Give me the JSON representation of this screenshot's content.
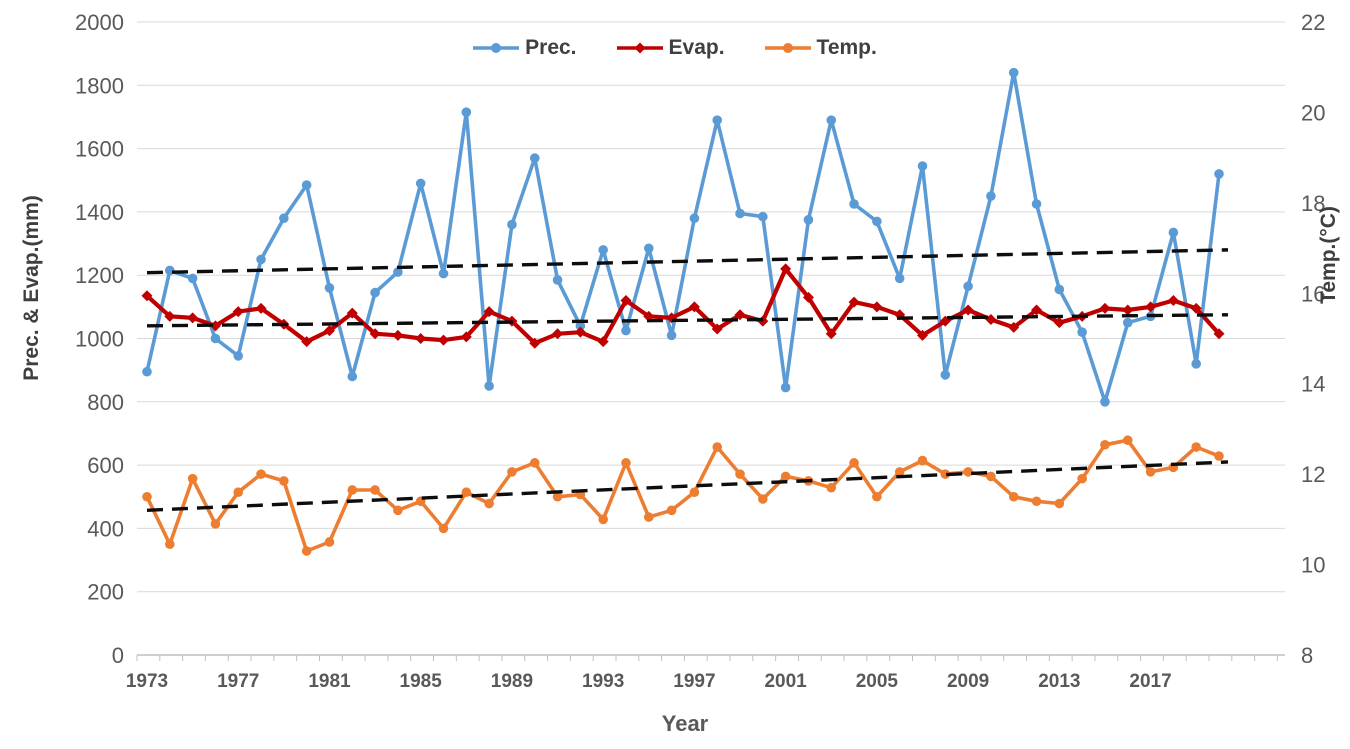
{
  "chart_data": {
    "type": "line",
    "title": "",
    "xlabel": "Year",
    "x_years": [
      1973,
      1974,
      1975,
      1976,
      1977,
      1978,
      1979,
      1980,
      1981,
      1982,
      1983,
      1984,
      1985,
      1986,
      1987,
      1988,
      1989,
      1990,
      1991,
      1992,
      1993,
      1994,
      1995,
      1996,
      1997,
      1998,
      1999,
      2000,
      2001,
      2002,
      2003,
      2004,
      2005,
      2006,
      2007,
      2008,
      2009,
      2010,
      2011,
      2012,
      2013,
      2014,
      2015,
      2016,
      2017,
      2018,
      2019,
      2020
    ],
    "x_tick_labels": [
      "1973",
      "1977",
      "1981",
      "1985",
      "1989",
      "1993",
      "1997",
      "2001",
      "2005",
      "2009",
      "2013",
      "2017"
    ],
    "left_axis": {
      "label": "Prec. & Evap.(mm)",
      "min": 0,
      "max": 2000,
      "step": 200,
      "ticks": [
        0,
        200,
        400,
        600,
        800,
        1000,
        1200,
        1400,
        1600,
        1800,
        2000
      ]
    },
    "right_axis": {
      "label": "Temp.(°C)",
      "min": 8,
      "max": 22,
      "step": 2,
      "ticks": [
        8,
        10,
        12,
        14,
        16,
        18,
        20,
        22
      ]
    },
    "grid": true,
    "legend_position": "top",
    "series": [
      {
        "name": "Prec.",
        "axis": "left",
        "color": "#5B9BD5",
        "marker": "circle",
        "width": 3.6,
        "values": [
          895,
          1215,
          1190,
          1000,
          945,
          1250,
          1380,
          1485,
          1160,
          880,
          1145,
          1210,
          1490,
          1205,
          1715,
          850,
          1360,
          1570,
          1185,
          1040,
          1280,
          1025,
          1285,
          1010,
          1380,
          1690,
          1395,
          1385,
          845,
          1375,
          1690,
          1425,
          1370,
          1190,
          1545,
          885,
          1165,
          1450,
          1840,
          1425,
          1155,
          1020,
          800,
          1050,
          1070,
          1335,
          920,
          1520
        ]
      },
      {
        "name": "Evap.",
        "axis": "left",
        "color": "#C00000",
        "marker": "diamond",
        "width": 4.2,
        "values": [
          1135,
          1070,
          1065,
          1040,
          1085,
          1095,
          1045,
          990,
          1025,
          1080,
          1015,
          1010,
          1000,
          995,
          1005,
          1085,
          1055,
          985,
          1015,
          1020,
          990,
          1120,
          1070,
          1065,
          1100,
          1030,
          1075,
          1055,
          1220,
          1130,
          1015,
          1115,
          1100,
          1075,
          1010,
          1055,
          1090,
          1060,
          1035,
          1090,
          1050,
          1070,
          1095,
          1090,
          1100,
          1120,
          1095,
          1015
        ]
      },
      {
        "name": "Temp.",
        "axis": "right",
        "color": "#ED7D31",
        "marker": "circle",
        "width": 3.6,
        "values": [
          11.5,
          10.45,
          11.9,
          10.9,
          11.6,
          12.0,
          11.85,
          10.3,
          10.5,
          11.65,
          11.65,
          11.2,
          11.4,
          10.8,
          11.6,
          11.35,
          12.05,
          12.25,
          11.5,
          11.55,
          11.0,
          12.25,
          11.05,
          11.2,
          11.6,
          12.6,
          12.0,
          11.45,
          11.95,
          11.85,
          11.7,
          12.25,
          11.5,
          12.05,
          12.3,
          12.0,
          12.05,
          11.95,
          11.5,
          11.4,
          11.35,
          11.9,
          12.65,
          12.75,
          12.05,
          12.15,
          12.6,
          12.4
        ]
      }
    ],
    "trendlines": [
      {
        "series": "Prec.",
        "axis": "left",
        "start": 1208,
        "end": 1280
      },
      {
        "series": "Evap.",
        "axis": "left",
        "start": 1040,
        "end": 1075
      },
      {
        "series": "Temp.",
        "axis": "right",
        "start": 11.2,
        "end": 12.27
      }
    ],
    "colors": {
      "grid": "#D9D9D9",
      "axis": "#BFBFBF",
      "tick_text": "#595959",
      "legend_text": "#404040",
      "trend": "#0D0D0D",
      "background": "#FFFFFF"
    }
  }
}
